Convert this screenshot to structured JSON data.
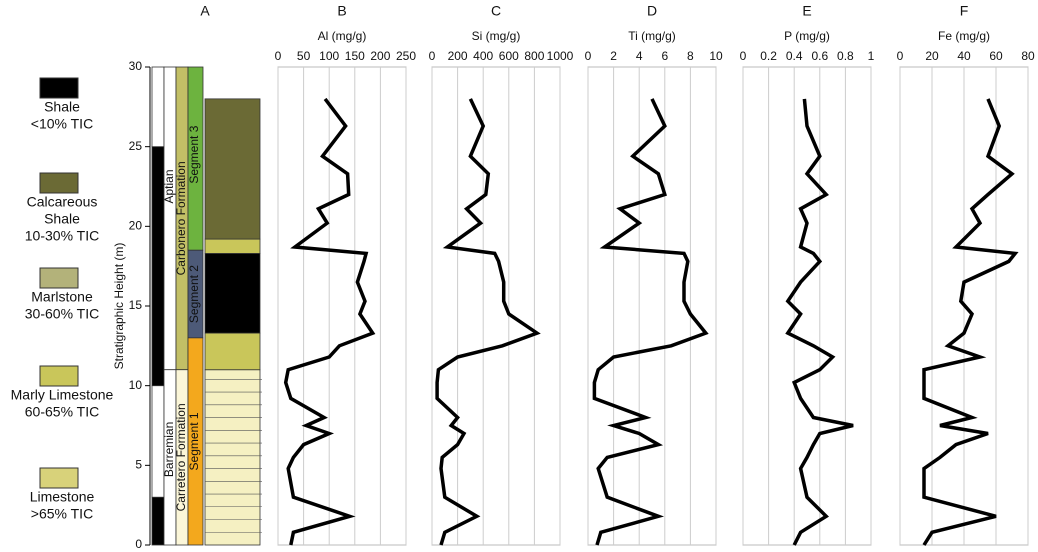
{
  "legend": [
    {
      "lines": [
        "Shale",
        "<10% TIC"
      ],
      "color": "#000000"
    },
    {
      "lines": [
        "Calcareous",
        "Shale",
        "10-30% TIC"
      ],
      "color": "#6b6a35"
    },
    {
      "lines": [
        "Marlstone",
        "30-60% TIC"
      ],
      "color": "#b3b27a"
    },
    {
      "lines": [
        "Marly Limestone",
        "60-65% TIC"
      ],
      "color": "#c9c65a"
    },
    {
      "lines": [
        "Limestone",
        ">65% TIC"
      ],
      "color": "#d8d27a"
    }
  ],
  "column": {
    "letter": "A",
    "y_label": "Stratigraphic Height (m)",
    "ylim": [
      0,
      30
    ],
    "yticks": [
      0,
      5,
      10,
      15,
      20,
      25,
      30
    ],
    "stages": [
      "Aptian",
      "Barremian"
    ],
    "formations": [
      "Carbonero Formation",
      "Carretero Formation"
    ],
    "segments": [
      "Segment 3",
      "Segment 2",
      "Segment 1"
    ]
  },
  "chart_data": [
    {
      "type": "profile",
      "letter": "B",
      "x_label": "Al (mg/g)",
      "xlim": [
        0,
        250
      ],
      "xticks": [
        0,
        50,
        100,
        150,
        200,
        250
      ],
      "y": [
        28,
        26.3,
        24.4,
        23.3,
        22,
        21.1,
        20.2,
        18.7,
        18.3,
        17.8,
        16.5,
        15.3,
        14.5,
        13.3,
        12.5,
        11.8,
        11,
        10.2,
        9.2,
        8,
        7.5,
        7,
        6.3,
        5.5,
        4.8,
        3,
        1.8,
        0.8,
        0
      ],
      "values": [
        92,
        132,
        87,
        136,
        138,
        79,
        96,
        33,
        172,
        168,
        155,
        170,
        160,
        185,
        120,
        100,
        20,
        15,
        25,
        90,
        55,
        100,
        50,
        30,
        20,
        30,
        140,
        30,
        25
      ]
    },
    {
      "type": "profile",
      "letter": "C",
      "x_label": "Si (mg/g)",
      "xlim": [
        0,
        1000
      ],
      "xticks": [
        0,
        200,
        400,
        600,
        800,
        1000
      ],
      "y": [
        28,
        26.3,
        24.4,
        23.3,
        22,
        21.1,
        20.2,
        18.7,
        18.3,
        17.8,
        16.5,
        15.3,
        14.5,
        13.3,
        12.5,
        11.8,
        11,
        10.2,
        9.2,
        8,
        7.5,
        7,
        6.3,
        5.5,
        4.8,
        3,
        1.8,
        0.8,
        0
      ],
      "values": [
        300,
        400,
        300,
        440,
        420,
        270,
        380,
        120,
        490,
        520,
        560,
        560,
        600,
        820,
        550,
        200,
        50,
        40,
        40,
        200,
        150,
        250,
        200,
        80,
        70,
        100,
        350,
        100,
        70
      ]
    },
    {
      "type": "profile",
      "letter": "D",
      "x_label": "Ti (mg/g)",
      "xlim": [
        0,
        10
      ],
      "xticks": [
        0,
        2,
        4,
        6,
        8,
        10
      ],
      "y": [
        28,
        26.3,
        24.4,
        23.3,
        22,
        21.1,
        20.2,
        18.7,
        18.3,
        17.8,
        16.5,
        15.3,
        14.5,
        13.3,
        12.5,
        11.8,
        11,
        10.2,
        9.2,
        8,
        7.5,
        7,
        6.3,
        5.5,
        4.8,
        3,
        1.8,
        0.8,
        0
      ],
      "values": [
        5,
        6,
        3.5,
        5.5,
        6,
        2.5,
        4,
        1.3,
        7.5,
        7.8,
        7.5,
        7.5,
        8,
        9.2,
        6.5,
        2,
        0.8,
        0.5,
        0.5,
        4.5,
        2,
        4,
        5.5,
        1.5,
        0.8,
        1.5,
        5.5,
        1,
        0.7
      ]
    },
    {
      "type": "profile",
      "letter": "E",
      "x_label": "P (mg/g)",
      "xlim": [
        0,
        1
      ],
      "xticks": [
        0,
        0.2,
        0.4,
        0.6,
        0.8,
        1
      ],
      "y": [
        28,
        26.3,
        24.4,
        23.3,
        22,
        21.1,
        20.2,
        18.7,
        18.3,
        17.8,
        16.5,
        15.3,
        14.5,
        13.3,
        12.5,
        11.8,
        11,
        10.2,
        9.2,
        8,
        7.5,
        7,
        6.3,
        5.5,
        4.8,
        3,
        1.8,
        0.8,
        0
      ],
      "values": [
        0.48,
        0.5,
        0.6,
        0.5,
        0.65,
        0.45,
        0.5,
        0.45,
        0.55,
        0.6,
        0.45,
        0.35,
        0.45,
        0.35,
        0.55,
        0.7,
        0.6,
        0.4,
        0.45,
        0.55,
        0.86,
        0.6,
        0.55,
        0.5,
        0.45,
        0.5,
        0.65,
        0.45,
        0.4
      ]
    },
    {
      "type": "profile",
      "letter": "F",
      "x_label": "Fe (mg/g)",
      "xlim": [
        0,
        80
      ],
      "xticks": [
        0,
        20,
        40,
        60,
        80
      ],
      "y": [
        28,
        26.3,
        24.4,
        23.3,
        22,
        21.1,
        20.2,
        18.7,
        18.3,
        17.8,
        16.5,
        15.3,
        14.5,
        13.3,
        12.5,
        11.8,
        11,
        10.2,
        9.2,
        8,
        7.5,
        7,
        6.3,
        5.5,
        4.8,
        3,
        1.8,
        0.8,
        0
      ],
      "values": [
        55,
        62,
        55,
        70,
        55,
        45,
        50,
        35,
        72,
        68,
        40,
        38,
        45,
        40,
        30,
        50,
        15,
        15,
        15,
        45,
        25,
        55,
        35,
        25,
        15,
        15,
        60,
        20,
        15
      ]
    }
  ]
}
